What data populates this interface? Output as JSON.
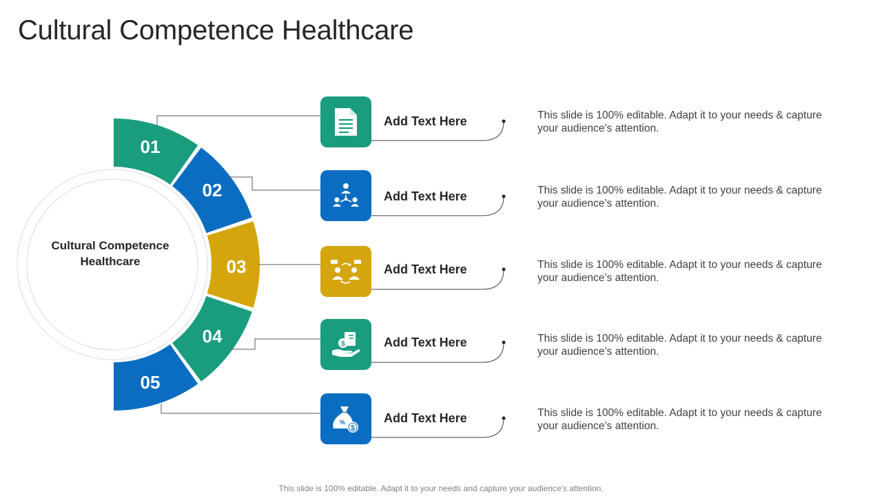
{
  "slide": {
    "title": "Cultural Competence Healthcare",
    "center_label": "Cultural Competence Healthcare",
    "footer": "This slide is 100% editable. Adapt it to your needs and capture your audience's attention."
  },
  "colors": {
    "teal": "#1a9c7f",
    "blue": "#0b6dc1",
    "gold": "#d4a50c"
  },
  "items": [
    {
      "number": "01",
      "label": "Add Text Here",
      "description": "This slide is 100% editable. Adapt it to your needs & capture your audience’s attention.",
      "icon": "document-icon",
      "color": "#1a9c7f"
    },
    {
      "number": "02",
      "label": "Add Text Here",
      "description": "This slide is 100% editable. Adapt it to your needs & capture your audience’s attention.",
      "icon": "people-network-icon",
      "color": "#0b6dc1"
    },
    {
      "number": "03",
      "label": "Add Text Here",
      "description": "This slide is 100% editable. Adapt it to your needs & capture your audience’s attention.",
      "icon": "people-exchange-icon",
      "color": "#d4a50c"
    },
    {
      "number": "04",
      "label": "Add Text Here",
      "description": "This slide is 100% editable. Adapt it to your needs & capture your audience’s attention.",
      "icon": "money-hand-icon",
      "color": "#1a9c7f"
    },
    {
      "number": "05",
      "label": "Add Text Here",
      "description": "This slide is 100% editable. Adapt it to your needs & capture your audience’s attention.",
      "icon": "money-bag-icon",
      "color": "#0b6dc1"
    }
  ]
}
